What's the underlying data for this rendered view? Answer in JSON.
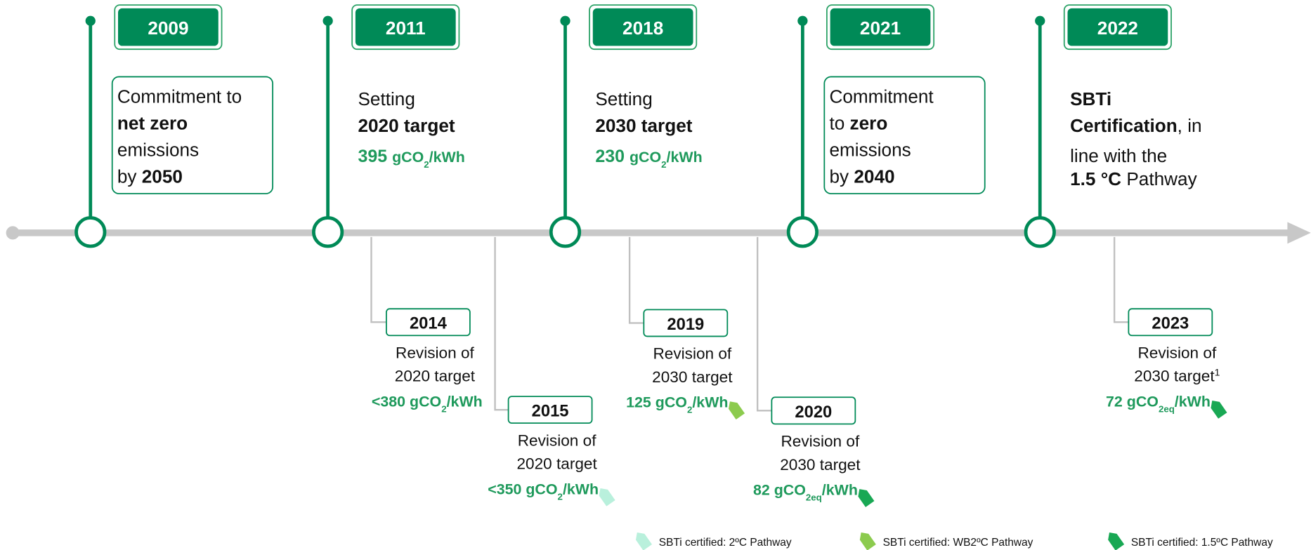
{
  "top": [
    {
      "year": "2009",
      "boxed": true,
      "lines": [
        [
          [
            "Commitment to"
          ]
        ],
        [
          [
            "net zero",
            "b"
          ]
        ],
        [
          [
            "emissions"
          ]
        ],
        [
          [
            "by "
          ],
          [
            "2050",
            "b"
          ]
        ]
      ]
    },
    {
      "year": "2011",
      "lines": [
        [
          [
            "Setting"
          ]
        ],
        [
          [
            "2020 target",
            "b"
          ]
        ],
        [
          [
            "395 ",
            "big"
          ],
          [
            "gCO",
            "b"
          ],
          [
            "2",
            "sub"
          ],
          [
            "/kWh",
            "b"
          ]
        ]
      ]
    },
    {
      "year": "2018",
      "lines": [
        [
          [
            "Setting"
          ]
        ],
        [
          [
            "2030 target",
            "b"
          ]
        ],
        [
          [
            "230 ",
            "big"
          ],
          [
            "gCO",
            "b"
          ],
          [
            "2",
            "sub"
          ],
          [
            "/kWh",
            "b"
          ]
        ]
      ]
    },
    {
      "year": "2021",
      "boxed": true,
      "lines": [
        [
          [
            "Commitment"
          ]
        ],
        [
          [
            "to "
          ],
          [
            "zero",
            "b"
          ]
        ],
        [
          [
            "emissions"
          ]
        ],
        [
          [
            "by "
          ],
          [
            "2040",
            "b"
          ]
        ]
      ]
    },
    {
      "year": "2022",
      "lines": [
        [
          [
            "SBTi",
            "b"
          ]
        ],
        [
          [
            "Certification",
            "b"
          ],
          [
            ", in"
          ]
        ],
        [
          [
            "line with the"
          ]
        ],
        [
          [
            "1.5 °C",
            "b"
          ],
          [
            " Pathway"
          ]
        ]
      ]
    }
  ],
  "bottom": [
    {
      "year": "2014",
      "lines": [
        [
          [
            "Revision of"
          ]
        ],
        [
          [
            "2020 target"
          ]
        ]
      ],
      "value": [
        [
          "<380 gCO",
          "b"
        ],
        [
          "2",
          "sub"
        ],
        [
          "/kWh",
          "b"
        ]
      ]
    },
    {
      "year": "2015",
      "lines": [
        [
          [
            "Revision of"
          ]
        ],
        [
          [
            "2020 target"
          ]
        ]
      ],
      "value": [
        [
          "<350 gCO",
          "b"
        ],
        [
          "2",
          "sub"
        ],
        [
          "/kWh",
          "b"
        ]
      ],
      "tag": 0
    },
    {
      "year": "2019",
      "lines": [
        [
          [
            "Revision of"
          ]
        ],
        [
          [
            "2030 target"
          ]
        ]
      ],
      "value": [
        [
          "125 gCO",
          "b"
        ],
        [
          "2",
          "sub"
        ],
        [
          "/kWh",
          "b"
        ]
      ],
      "tag": 1
    },
    {
      "year": "2020",
      "lines": [
        [
          [
            "Revision of"
          ]
        ],
        [
          [
            "2030 target"
          ]
        ]
      ],
      "value": [
        [
          "82 gCO",
          "b"
        ],
        [
          "2eq",
          "sub"
        ],
        [
          "/kWh",
          "b"
        ]
      ],
      "tag": 2
    },
    {
      "year": "2023",
      "lines": [
        [
          [
            "Revision of"
          ]
        ],
        [
          [
            "2030 target"
          ],
          [
            "1",
            "sup"
          ]
        ]
      ],
      "value": [
        [
          "72 gCO",
          "b"
        ],
        [
          "2eq",
          "sub"
        ],
        [
          "/kWh",
          "b"
        ]
      ],
      "tag": 2
    }
  ],
  "legend": [
    {
      "label": "SBTi certified: 2ºC Pathway",
      "color": "#b9f0dc"
    },
    {
      "label": "SBTi certified: WB2ºC Pathway",
      "color": "#8ccb4e"
    },
    {
      "label": "SBTi certified: 1.5ºC Pathway",
      "color": "#19a854"
    }
  ]
}
